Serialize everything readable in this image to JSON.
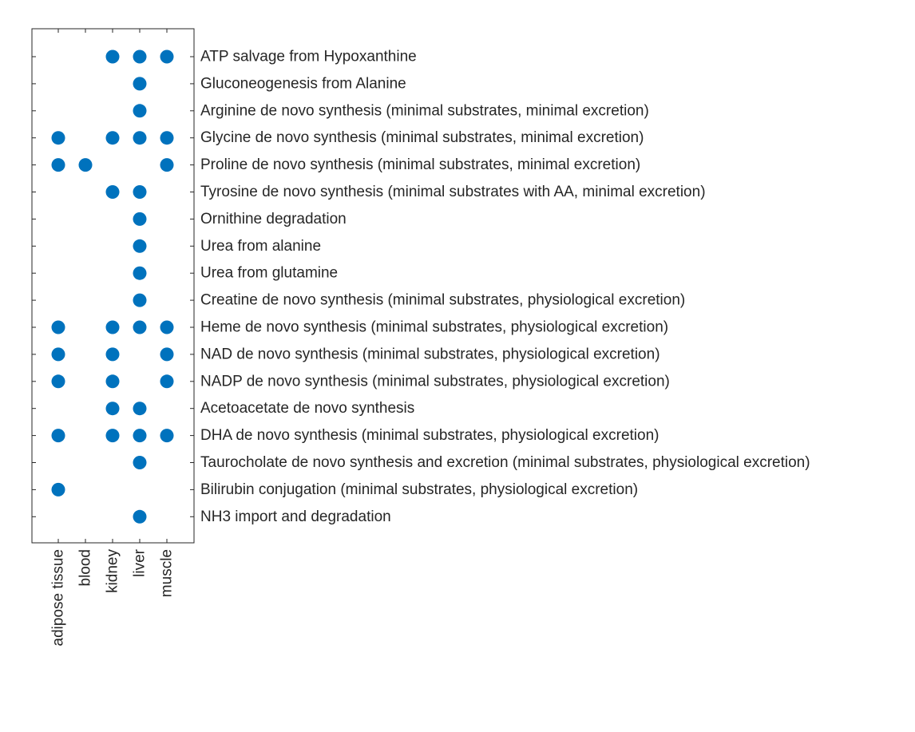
{
  "chart_data": {
    "type": "scatter",
    "title": "",
    "xlabel": "",
    "ylabel": "",
    "x_categories": [
      "adipose tissue",
      "blood",
      "kidney",
      "liver",
      "muscle"
    ],
    "y_categories": [
      "ATP salvage from Hypoxanthine",
      "Gluconeogenesis from Alanine",
      "Arginine de novo synthesis (minimal substrates, minimal excretion)",
      "Glycine de novo synthesis (minimal substrates, minimal excretion)",
      "Proline de novo synthesis (minimal substrates, minimal excretion)",
      "Tyrosine de novo synthesis (minimal substrates with AA, minimal excretion)",
      "Ornithine degradation",
      "Urea from alanine",
      "Urea from glutamine",
      "Creatine de novo synthesis (minimal substrates, physiological excretion)",
      "Heme de novo synthesis (minimal substrates, physiological excretion)",
      "NAD de novo synthesis (minimal substrates, physiological excretion)",
      "NADP de novo synthesis (minimal substrates, physiological excretion)",
      "Acetoacetate de novo synthesis",
      "DHA de novo synthesis (minimal substrates, physiological excretion)",
      "Taurocholate de novo synthesis and excretion (minimal substrates, physiological excretion)",
      "Bilirubin conjugation (minimal substrates, physiological excretion)",
      "NH3 import and degradation"
    ],
    "matrix": [
      [
        0,
        0,
        1,
        1,
        1
      ],
      [
        0,
        0,
        0,
        1,
        0
      ],
      [
        0,
        0,
        0,
        1,
        0
      ],
      [
        1,
        0,
        1,
        1,
        1
      ],
      [
        1,
        1,
        0,
        0,
        1
      ],
      [
        0,
        0,
        1,
        1,
        0
      ],
      [
        0,
        0,
        0,
        1,
        0
      ],
      [
        0,
        0,
        0,
        1,
        0
      ],
      [
        0,
        0,
        0,
        1,
        0
      ],
      [
        0,
        0,
        0,
        1,
        0
      ],
      [
        1,
        0,
        1,
        1,
        1
      ],
      [
        1,
        0,
        1,
        0,
        1
      ],
      [
        1,
        0,
        1,
        0,
        1
      ],
      [
        0,
        0,
        1,
        1,
        0
      ],
      [
        1,
        0,
        1,
        1,
        1
      ],
      [
        0,
        0,
        0,
        1,
        0
      ],
      [
        1,
        0,
        0,
        0,
        0
      ],
      [
        0,
        0,
        0,
        1,
        0
      ]
    ],
    "marker_color": "#0072BD",
    "axis_color": "#262626",
    "grid": false,
    "legend": "none"
  }
}
